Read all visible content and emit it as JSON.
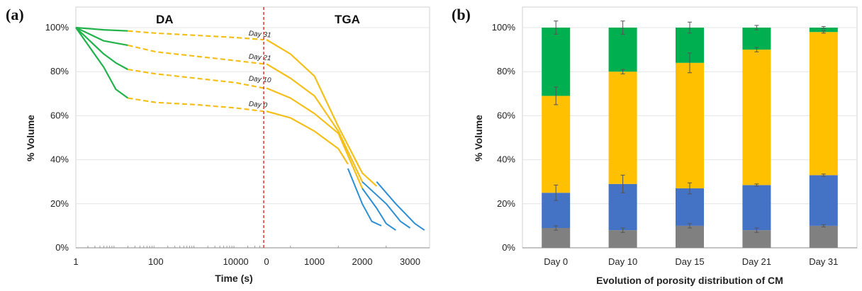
{
  "chart_data": [
    {
      "panel_label": "(a)",
      "type": "line",
      "ylabel": "% Volume",
      "xlabel": "Time (s)",
      "region_labels": [
        "DA",
        "TGA"
      ],
      "yticks": [
        "0%",
        "20%",
        "40%",
        "60%",
        "80%",
        "100%"
      ],
      "xticks_da": [
        "1",
        "100",
        "10000"
      ],
      "xticks_tga": [
        "0",
        "1000",
        "2000",
        "3000"
      ],
      "ylim": [
        0,
        100
      ],
      "da_xscale": "log",
      "colors": {
        "da_solid": "#22b24c",
        "da_dashed": "#f5bf1a",
        "tga": "#f5bf1a",
        "tga_tail": "#2c8fd6",
        "divider": "#e8322b"
      },
      "series": [
        {
          "name": "Day 31",
          "da_solid": [
            [
              1,
              100
            ],
            [
              5,
              99
            ],
            [
              20,
              98.5
            ]
          ],
          "da_dashed": [
            [
              20,
              98.5
            ],
            [
              100,
              97.5
            ],
            [
              1000,
              96.5
            ],
            [
              10000,
              95.5
            ],
            [
              50000,
              94.5
            ]
          ],
          "tga": [
            [
              0,
              94.5
            ],
            [
              500,
              88
            ],
            [
              1000,
              78
            ],
            [
              1500,
              55
            ],
            [
              2000,
              34
            ],
            [
              2300,
              28
            ]
          ],
          "tga_tail": [
            [
              2300,
              30
            ],
            [
              2700,
              20
            ],
            [
              3100,
              11
            ],
            [
              3300,
              8
            ]
          ]
        },
        {
          "name": "Day 21",
          "da_solid": [
            [
              1,
              100
            ],
            [
              5,
              94
            ],
            [
              20,
              92
            ]
          ],
          "da_dashed": [
            [
              20,
              92
            ],
            [
              100,
              89
            ],
            [
              1000,
              87
            ],
            [
              10000,
              85
            ],
            [
              50000,
              83.5
            ]
          ],
          "tga": [
            [
              0,
              83.5
            ],
            [
              500,
              77
            ],
            [
              1000,
              69
            ],
            [
              1500,
              53
            ],
            [
              2000,
              30
            ]
          ],
          "tga_tail": [
            [
              2000,
              30
            ],
            [
              2500,
              20
            ],
            [
              2800,
              12
            ],
            [
              3000,
              9
            ]
          ]
        },
        {
          "name": "Day 10",
          "da_solid": [
            [
              1,
              100
            ],
            [
              5,
              88
            ],
            [
              10,
              84
            ],
            [
              20,
              81
            ]
          ],
          "da_dashed": [
            [
              20,
              81
            ],
            [
              100,
              79
            ],
            [
              1000,
              77
            ],
            [
              10000,
              75
            ],
            [
              50000,
              72.5
            ]
          ],
          "tga": [
            [
              0,
              72.5
            ],
            [
              500,
              68
            ],
            [
              1000,
              61
            ],
            [
              1500,
              52
            ],
            [
              2000,
              27
            ]
          ],
          "tga_tail": [
            [
              2000,
              27
            ],
            [
              2300,
              18
            ],
            [
              2500,
              11
            ],
            [
              2700,
              8
            ]
          ]
        },
        {
          "name": "Day 0",
          "da_solid": [
            [
              1,
              100
            ],
            [
              5,
              82
            ],
            [
              10,
              72
            ],
            [
              20,
              68
            ]
          ],
          "da_dashed": [
            [
              20,
              68
            ],
            [
              100,
              66
            ],
            [
              1000,
              65
            ],
            [
              10000,
              63.5
            ],
            [
              50000,
              62
            ]
          ],
          "tga": [
            [
              0,
              62
            ],
            [
              500,
              59
            ],
            [
              1000,
              53
            ],
            [
              1500,
              45
            ],
            [
              1700,
              38
            ]
          ],
          "tga_tail": [
            [
              1700,
              36
            ],
            [
              2000,
              20
            ],
            [
              2200,
              12
            ],
            [
              2400,
              10
            ]
          ]
        }
      ]
    },
    {
      "panel_label": "(b)",
      "type": "bar",
      "stacked": true,
      "ylabel": "% Volume",
      "xlabel": "Evolution of porosity distribution of CM",
      "yticks": [
        "0%",
        "20%",
        "40%",
        "60%",
        "80%",
        "100%"
      ],
      "ylim": [
        0,
        100
      ],
      "categories": [
        "Day 0",
        "Day 10",
        "Day 15",
        "Day 21",
        "Day 31"
      ],
      "series": [
        {
          "color": "#808080",
          "values": [
            9,
            8,
            10,
            8,
            10
          ]
        },
        {
          "color": "#4472c4",
          "values": [
            16,
            21,
            17,
            20.5,
            23
          ]
        },
        {
          "color": "#ffc000",
          "values": [
            44,
            51,
            57,
            61.5,
            65
          ]
        },
        {
          "color": "#00b050",
          "values": [
            31,
            20,
            16,
            10,
            2
          ]
        }
      ],
      "error_bars": [
        [
          1,
          1,
          1,
          1,
          0.5
        ],
        [
          3.5,
          4,
          2.5,
          0.5,
          0.5
        ],
        [
          4,
          1,
          4.5,
          1,
          0.5
        ],
        [
          3,
          3,
          2.5,
          1,
          0.5
        ]
      ]
    }
  ]
}
